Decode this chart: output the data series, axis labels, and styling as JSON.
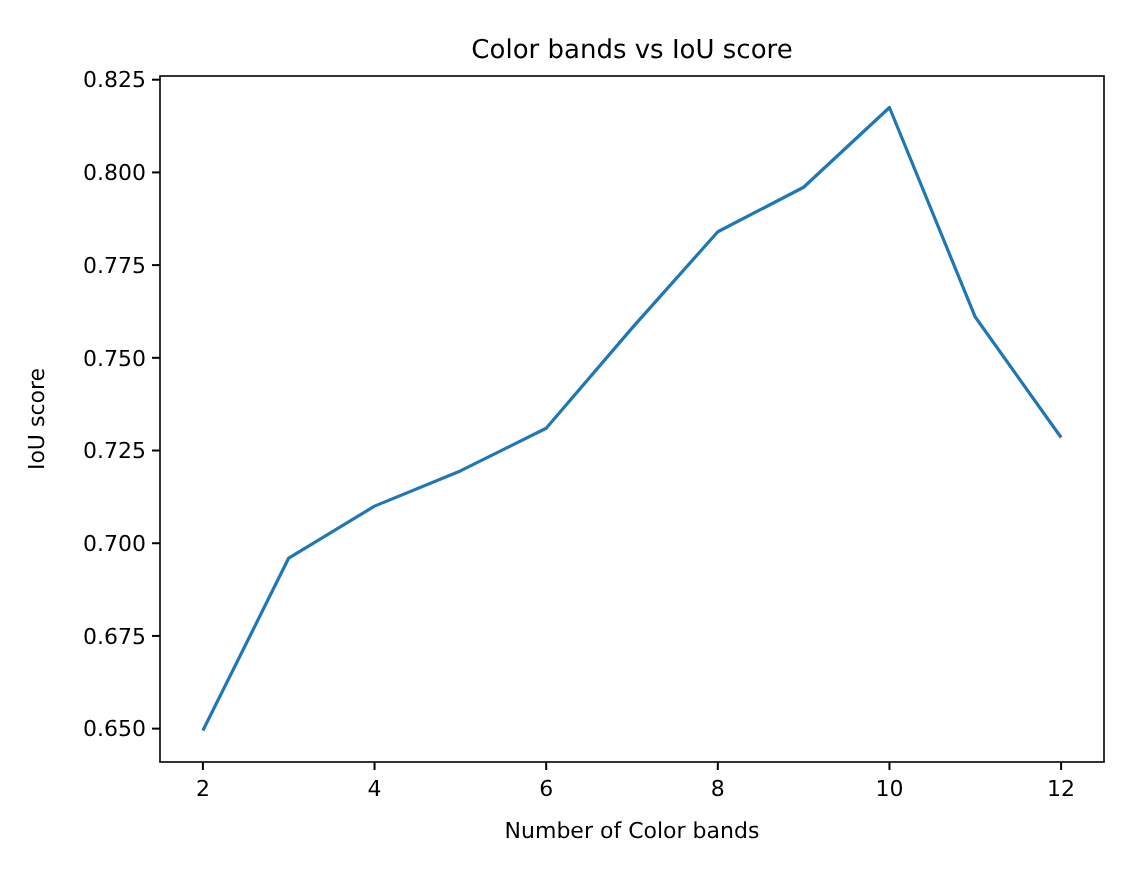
{
  "chart_data": {
    "type": "line",
    "title": "Color bands vs IoU score",
    "xlabel": "Number of Color bands",
    "ylabel": "IoU score",
    "x": [
      2,
      3,
      4,
      5,
      6,
      7,
      8,
      9,
      10,
      11,
      12
    ],
    "series": [
      {
        "color": "#1f77b4",
        "values": [
          0.6495,
          0.696,
          0.71,
          0.7195,
          0.731,
          0.758,
          0.784,
          0.796,
          0.8175,
          0.761,
          0.7285
        ]
      }
    ],
    "xlim": [
      1.5,
      12.5
    ],
    "xticks": [
      2,
      4,
      6,
      8,
      10,
      12
    ],
    "ylim": [
      0.641,
      0.826
    ],
    "yticks": [
      {
        "value": 0.65,
        "label": "0.650"
      },
      {
        "value": 0.675,
        "label": "0.675"
      },
      {
        "value": 0.7,
        "label": "0.700"
      },
      {
        "value": 0.725,
        "label": "0.725"
      },
      {
        "value": 0.75,
        "label": "0.750"
      },
      {
        "value": 0.775,
        "label": "0.775"
      },
      {
        "value": 0.8,
        "label": "0.800"
      },
      {
        "value": 0.825,
        "label": "0.825"
      }
    ],
    "grid": false,
    "marker": "none",
    "line_style": "solid"
  }
}
